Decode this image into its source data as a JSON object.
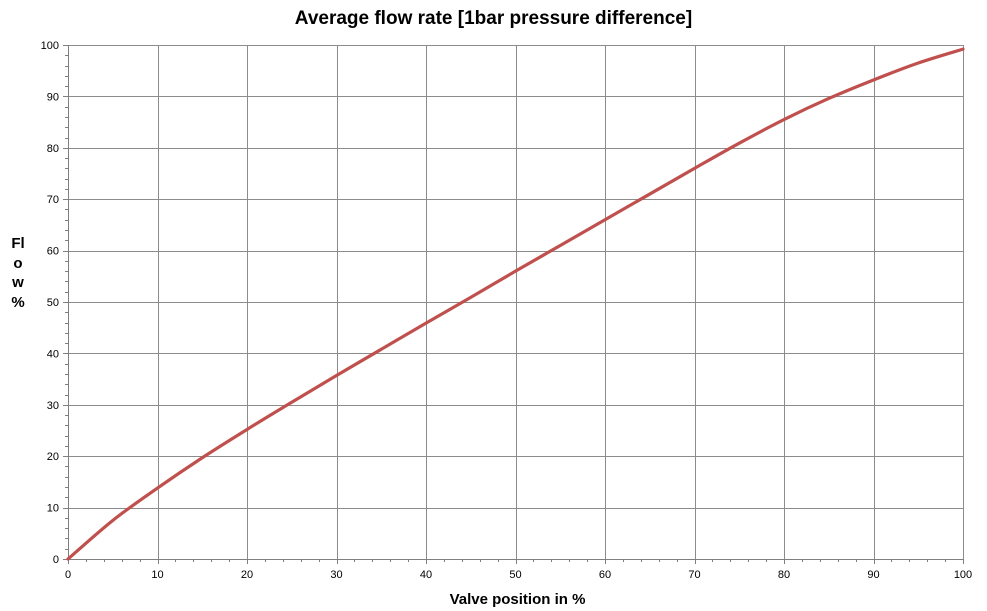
{
  "chart_data": {
    "type": "line",
    "title": "Average flow rate [1bar pressure difference]",
    "xlabel": "Valve position in %",
    "ylabel": "Flow%",
    "xlim": [
      0,
      100
    ],
    "ylim": [
      0,
      100
    ],
    "xticks": [
      "0",
      "10",
      "20",
      "30",
      "40",
      "50",
      "60",
      "70",
      "80",
      "90",
      "100"
    ],
    "yticks": [
      "0",
      "10",
      "20",
      "30",
      "40",
      "50",
      "60",
      "70",
      "80",
      "90",
      "100"
    ],
    "grid": true,
    "series": [
      {
        "color": "#c0504d",
        "x": [
          0,
          5,
          10,
          15,
          20,
          25,
          30,
          35,
          40,
          45,
          50,
          55,
          60,
          65,
          70,
          75,
          80,
          85,
          90,
          95,
          100
        ],
        "y": [
          0,
          7.5,
          13.8,
          19.7,
          25.2,
          30.5,
          35.7,
          40.8,
          45.9,
          50.9,
          56.0,
          61.0,
          66.0,
          71.0,
          76.0,
          80.9,
          85.5,
          89.6,
          93.2,
          96.5,
          99.2
        ]
      }
    ]
  }
}
